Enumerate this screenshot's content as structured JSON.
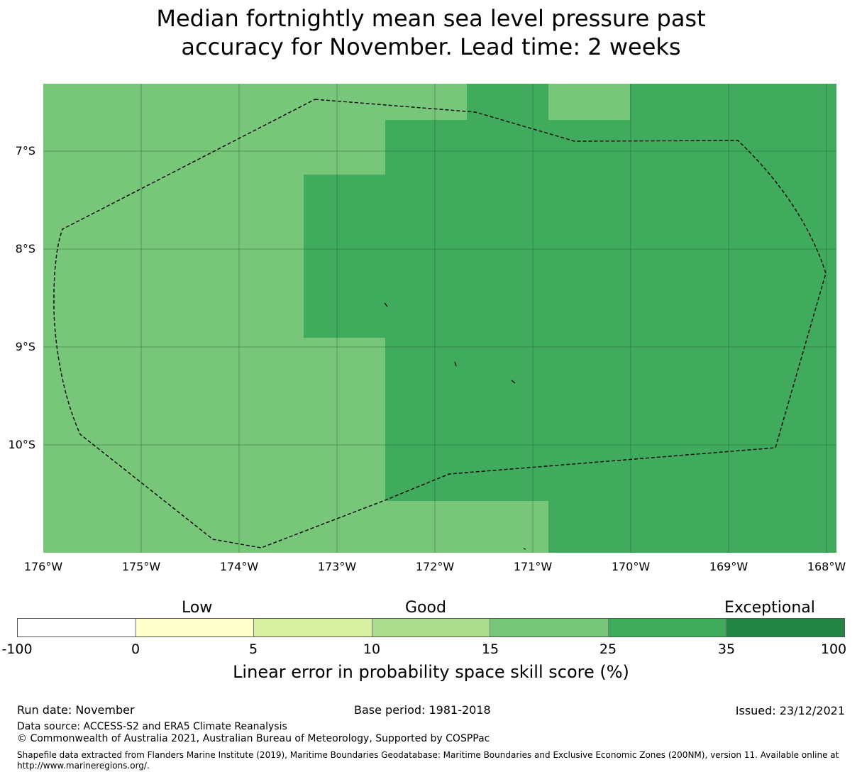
{
  "title_line1": "Median fortnightly mean sea level pressure past",
  "title_line2": "accuracy for November. Lead time: 2 weeks",
  "map": {
    "lat_labels": [
      "7°S",
      "8°S",
      "9°S",
      "10°S"
    ],
    "lon_labels": [
      "176°W",
      "175°W",
      "174°W",
      "173°W",
      "172°W",
      "171°W",
      "170°W",
      "169°W",
      "168°W"
    ],
    "colors": {
      "good": "#78c679",
      "very_good": "#41ab5d",
      "grid": "#1e5f2a",
      "boundary": "#000000"
    },
    "cells_legend": "values shown by fill colour: lighter green = 15-25, darker green = 25-35"
  },
  "legend": {
    "categories": [
      "Low",
      "Good",
      "Exceptional"
    ],
    "ticks": [
      "-100",
      "0",
      "5",
      "10",
      "15",
      "25",
      "35",
      "100"
    ],
    "colors": [
      "#ffffff",
      "#ffffcc",
      "#d9f0a3",
      "#addd8e",
      "#78c679",
      "#41ab5d",
      "#238443"
    ],
    "title": "Linear error in probability space skill score (%)"
  },
  "footer": {
    "run_date": "Run date: November",
    "base_period": "Base period: 1981-2018",
    "issued": "Issued: 23/12/2021",
    "data_source": "Data source: ACCESS-S2 and ERA5 Climate Reanalysis",
    "copyright": "© Commonwealth of Australia 2021, Australian Bureau of Meteorology, Supported by COSPPac",
    "shapefile": "Shapefile data extracted from Flanders Marine Institute (2019), Maritime Boundaries Geodatabase: Maritime Boundaries and Exclusive Economic Zones (200NM), version 11. Available online at http://www.marineregions.org/."
  }
}
